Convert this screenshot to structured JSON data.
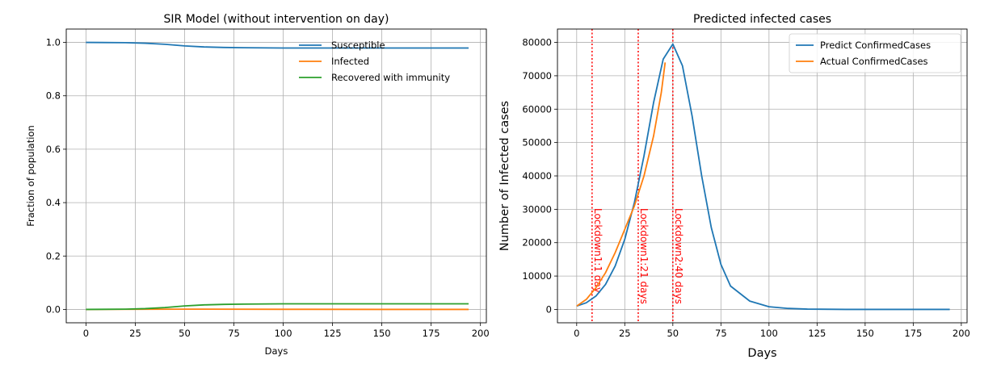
{
  "chart_data": [
    {
      "type": "line",
      "title": "SIR Model (without intervention on day)",
      "xlabel": "Days",
      "ylabel": "Fraction of population",
      "xlim": [
        -10,
        203
      ],
      "ylim": [
        -0.05,
        1.05
      ],
      "xticks": [
        0,
        25,
        50,
        75,
        100,
        125,
        150,
        175,
        200
      ],
      "yticks": [
        0.0,
        0.2,
        0.4,
        0.6,
        0.8,
        1.0
      ],
      "ytick_labels": [
        "0.0",
        "0.2",
        "0.4",
        "0.6",
        "0.8",
        "1.0"
      ],
      "grid": true,
      "legend": "top-right",
      "legend_frame": false,
      "series": [
        {
          "name": "Susceptible",
          "color": "#1f77b4",
          "x": [
            0,
            20,
            30,
            40,
            50,
            60,
            70,
            80,
            100,
            150,
            194
          ],
          "y": [
            1.0,
            0.999,
            0.997,
            0.993,
            0.987,
            0.983,
            0.981,
            0.98,
            0.979,
            0.979,
            0.979
          ]
        },
        {
          "name": "Infected",
          "color": "#ff7f0e",
          "x": [
            0,
            50,
            100,
            150,
            194
          ],
          "y": [
            0.0,
            0.001,
            0.0005,
            0.0,
            0.0
          ]
        },
        {
          "name": "Recovered with immunity",
          "color": "#2ca02c",
          "x": [
            0,
            20,
            30,
            40,
            50,
            60,
            70,
            80,
            100,
            150,
            194
          ],
          "y": [
            0.0,
            0.001,
            0.003,
            0.007,
            0.013,
            0.017,
            0.019,
            0.02,
            0.021,
            0.021,
            0.021
          ]
        }
      ]
    },
    {
      "type": "line",
      "title": "Predicted infected cases",
      "xlabel": "Days",
      "ylabel": "Number of Infected cases",
      "xlim": [
        -10,
        203
      ],
      "ylim": [
        -4000,
        84000
      ],
      "xticks": [
        0,
        25,
        50,
        75,
        100,
        125,
        150,
        175,
        200
      ],
      "yticks": [
        0,
        10000,
        20000,
        30000,
        40000,
        50000,
        60000,
        70000,
        80000
      ],
      "grid": true,
      "legend": "top-right",
      "legend_frame": true,
      "series": [
        {
          "name": "Predict ConfirmedCases",
          "color": "#1f77b4",
          "x": [
            0,
            5,
            10,
            15,
            20,
            25,
            30,
            35,
            40,
            45,
            50,
            55,
            60,
            65,
            70,
            75,
            80,
            90,
            100,
            110,
            120,
            140,
            160,
            194
          ],
          "y": [
            1000,
            2000,
            4000,
            7500,
            13000,
            21000,
            32000,
            46000,
            62000,
            75000,
            79500,
            73000,
            58000,
            40000,
            24500,
            13500,
            7000,
            2500,
            800,
            300,
            100,
            0,
            0,
            0
          ]
        },
        {
          "name": "Actual ConfirmedCases",
          "color": "#ff7f0e",
          "x": [
            0,
            5,
            10,
            15,
            20,
            25,
            30,
            35,
            40,
            44,
            46
          ],
          "y": [
            1000,
            3000,
            6500,
            11000,
            17000,
            24000,
            31000,
            40000,
            52000,
            65000,
            74000
          ]
        }
      ],
      "vlines": [
        {
          "x": 8,
          "label": "Lockdown1:1 day",
          "color": "#ff0000"
        },
        {
          "x": 32,
          "label": "Lockdown1:21 days",
          "color": "#ff0000"
        },
        {
          "x": 50,
          "label": "Lockdown2:40 days",
          "color": "#ff0000"
        }
      ]
    }
  ]
}
